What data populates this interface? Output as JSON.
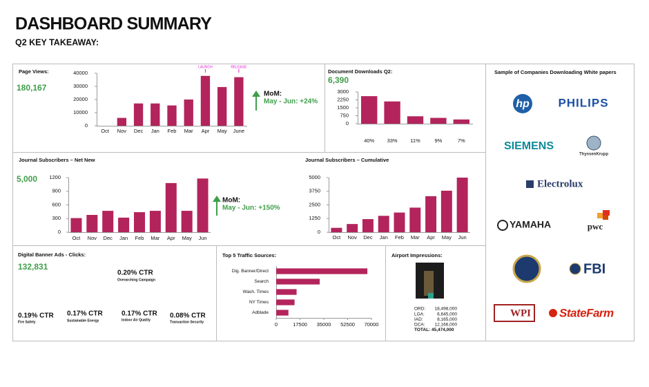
{
  "header": {
    "title": "DASHBOARD SUMMARY",
    "subtitle": "Q2 KEY TAKEAWAY:"
  },
  "chart_data": [
    {
      "type": "bar",
      "title": "Page Views:",
      "total": "180,167",
      "color": "#b3245c",
      "categories": [
        "Oct",
        "Nov",
        "Dec",
        "Jan",
        "Feb",
        "Mar",
        "Apr",
        "May",
        "June"
      ],
      "values": [
        0,
        6000,
        17000,
        17000,
        15500,
        20000,
        38000,
        29500,
        37000
      ],
      "ylim": [
        0,
        40000
      ],
      "yticks": [
        0,
        10000,
        20000,
        30000,
        40000
      ],
      "annotations": [
        {
          "text": "LAUNCH",
          "category": "Apr"
        },
        {
          "text": "RELEASE",
          "category": "June"
        }
      ],
      "mom_title": "MoM:",
      "mom_text": "May - Jun: +24%"
    },
    {
      "type": "bar",
      "title": "Document Downloads Q2:",
      "total": "6,390",
      "color": "#b3245c",
      "categories": [
        "40%",
        "33%",
        "11%",
        "9%",
        "7%"
      ],
      "values": [
        2600,
        2100,
        700,
        550,
        400
      ],
      "ylim": [
        0,
        3000
      ],
      "yticks": [
        0,
        750,
        1500,
        2250,
        3000
      ]
    },
    {
      "type": "bar",
      "title": "Journal Subscribers – Net New",
      "total": "5,000",
      "color": "#b3245c",
      "categories": [
        "Oct",
        "Nov",
        "Dec",
        "Jan",
        "Feb",
        "Mar",
        "Apr",
        "May",
        "Jun"
      ],
      "values": [
        310,
        380,
        470,
        320,
        440,
        470,
        1080,
        470,
        1180
      ],
      "ylim": [
        0,
        1200
      ],
      "yticks": [
        0,
        300,
        600,
        900,
        1200
      ],
      "mom_title": "MoM:",
      "mom_text": "May - Jun: +150%"
    },
    {
      "type": "bar",
      "title": "Journal Subscribers – Cumulative",
      "color": "#b3245c",
      "categories": [
        "Oct",
        "Nov",
        "Dec",
        "Jan",
        "Feb",
        "Mar",
        "Apr",
        "May",
        "Jun"
      ],
      "values": [
        400,
        750,
        1200,
        1500,
        1800,
        2250,
        3300,
        3800,
        5000
      ],
      "ylim": [
        0,
        5000
      ],
      "yticks": [
        0,
        1250,
        2500,
        3750,
        5000
      ]
    },
    {
      "type": "hbar",
      "title": "Top 5 Traffic Sources:",
      "color": "#b3245c",
      "categories": [
        "Dig. Banner/Direct",
        "Search",
        "Wash. Times",
        "NY Times",
        "Adblade"
      ],
      "values": [
        67000,
        32000,
        15000,
        13500,
        9000
      ],
      "xlim": [
        0,
        70000
      ],
      "xticks": [
        0,
        17500,
        35000,
        52500,
        70000
      ]
    }
  ],
  "logos": {
    "title": "Sample of Companies Downloading White papers",
    "names": [
      "hp",
      "PHILIPS",
      "SIEMENS",
      "ThyssenKrupp",
      "Electrolux",
      "YAMAHA",
      "pwc",
      "FBI",
      "WPI",
      "StateFarm"
    ]
  },
  "banner_ads": {
    "title": "Digital Banner Ads - Clicks:",
    "total": "132,831",
    "campaigns": [
      {
        "ctr": "0.20% CTR",
        "name": "Overarching Campaign"
      },
      {
        "ctr": "0.19% CTR",
        "name": "Fire Safety"
      },
      {
        "ctr": "0.17% CTR",
        "name": "Sustainable Energy"
      },
      {
        "ctr": "0.17% CTR",
        "name": "Indoor Air Quality"
      },
      {
        "ctr": "0.08% CTR",
        "name": "Transaction Security"
      }
    ]
  },
  "airport": {
    "title": "Airport Impressions:",
    "rows": [
      [
        "ORD:",
        "18,498,000"
      ],
      [
        "LGA:",
        "6,645,000"
      ],
      [
        "IAD:",
        "8,165,000"
      ],
      [
        "DCA:",
        "12,166,000"
      ],
      [
        "TOTAL:",
        "45,474,000"
      ]
    ]
  }
}
